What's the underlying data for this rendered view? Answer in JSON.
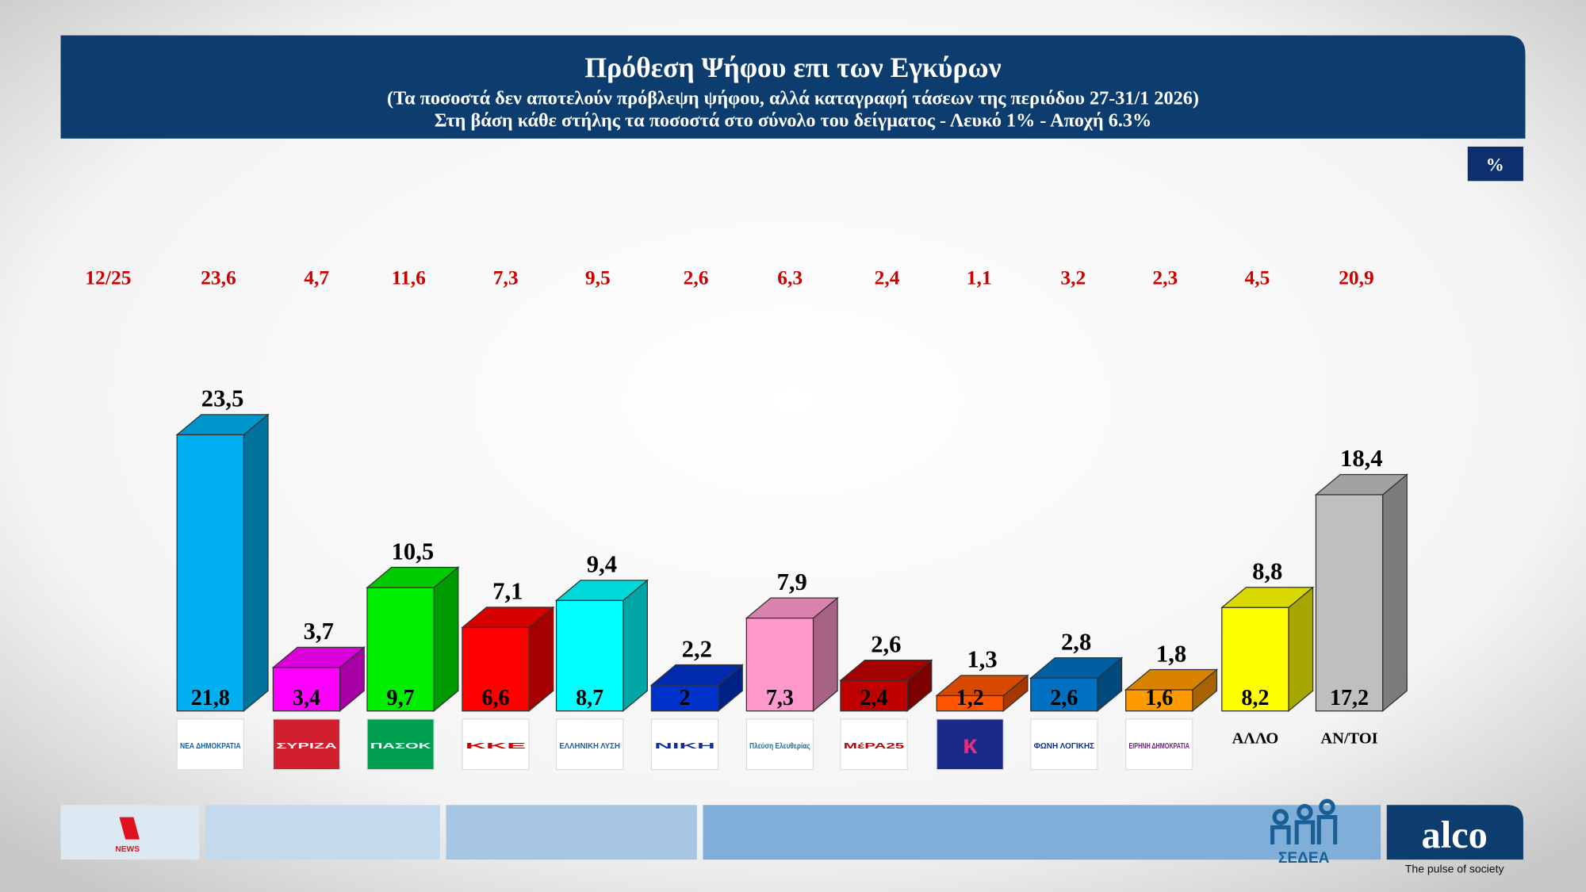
{
  "chart_data": {
    "type": "bar3d",
    "title": "Πρόθεση Ψήφου επι των Εγκύρων",
    "subtitle": "(Τα ποσοστά δεν αποτελούν πρόβλεψη ψήφου, αλλά καταγραφή τάσεων της περιόδου  27-31/1 2026)",
    "subtitle2": "Στη βάση κάθε στήλης τα ποσοστά στο σύνολο του δείγματος - Λευκό 1% - Αποχή 6.3%",
    "unit": "%",
    "categories": [
      "ΝΕΑ ΔΗΜΟΚΡΑΤΙΑ",
      "ΣΥΡΙΖΑ",
      "ΠΑΣΟΚ",
      "ΚΚΕ",
      "ΕΛΛΗΝΙΚΗ ΛΥΣΗ",
      "ΝΙΚΗ",
      "Πλεύση Ελευθερίας",
      "ΜέΡΑ25",
      null,
      "ΦΩΝΗ ΛΟΓΙΚΗΣ",
      "ΕΙΡΗΝΗ ΔΗΜΟΚΡΑΤΙΑ",
      "ΑΛΛΟ",
      "ΑΝ/ΤΟΙ"
    ],
    "colors": [
      "#00b0f0",
      "#ff00ff",
      "#00ee00",
      "#ff0000",
      "#00ffff",
      "#0033cc",
      "#ff99cc",
      "#c00000",
      "#ff5500",
      "#0070c0",
      "#ff9900",
      "#ffff00",
      "#bfbfbf"
    ],
    "series": [
      {
        "values": [
          23.5,
          3.7,
          10.5,
          7.1,
          9.4,
          2.2,
          7.9,
          2.6,
          1.3,
          2.8,
          1.8,
          8.8,
          18.4
        ],
        "value_labels": [
          "23,5",
          "3,7",
          "10,5",
          "7,1",
          "9,4",
          "2,2",
          "7,9",
          "2,6",
          "1,3",
          "2,8",
          "1,8",
          "8,8",
          "18,4"
        ]
      },
      {
        "values": [
          21.8,
          3.4,
          9.7,
          6.6,
          8.7,
          2,
          7.3,
          2.4,
          1.2,
          2.6,
          1.6,
          8.2,
          17.2
        ],
        "value_labels": [
          "21,8",
          "3,4",
          "9,7",
          "6,6",
          "8,7",
          "2",
          "7,3",
          "2,4",
          "1,2",
          "2,6",
          "1,6",
          "8,2",
          "17,2"
        ]
      }
    ],
    "previous": {
      "label": "12/25",
      "values": [
        23.6,
        4.7,
        11.6,
        7.3,
        9.5,
        2.6,
        6.3,
        2.4,
        1.1,
        3.2,
        2.3,
        4.5,
        20.9
      ],
      "value_labels": [
        "23,6",
        "4,7",
        "11,6",
        "7,3",
        "9,5",
        "2,6",
        "6,3",
        "2,4",
        "1,1",
        "3,2",
        "2,3",
        "4,5",
        "20,9"
      ]
    }
  },
  "footer": {
    "channel": "NEWS",
    "partner": "ΣΕΔΕΑ",
    "brand": "alco",
    "tagline": "The pulse of society"
  }
}
